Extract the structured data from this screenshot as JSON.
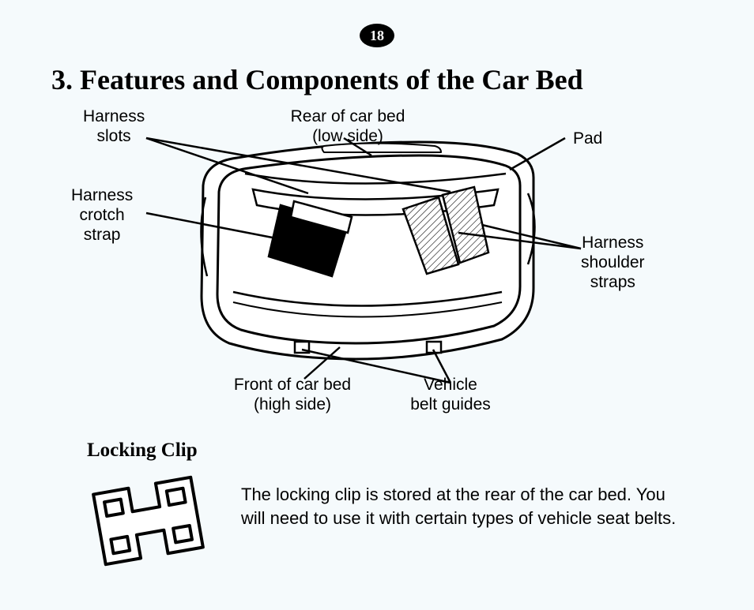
{
  "page_number": "18",
  "title": "3.  Features and Components of the Car Bed",
  "labels": {
    "harness_slots": "Harness\nslots",
    "rear_of_bed": "Rear of car bed\n(low side)",
    "pad": "Pad",
    "harness_crotch_strap": "Harness\ncrotch\nstrap",
    "harness_shoulder_straps": "Harness\nshoulder\nstraps",
    "front_of_bed": "Front of car bed\n(high side)",
    "vehicle_belt_guides": "Vehicle\nbelt guides"
  },
  "locking_clip": {
    "heading": "Locking Clip",
    "text": "The locking clip is stored at the rear of the car bed. You will need to use it with certain types of vehicle seat belts."
  },
  "style": {
    "background": "#f5fafc",
    "text_color": "#000000",
    "badge_bg": "#000000",
    "badge_fg": "#ffffff",
    "stroke": "#000000",
    "stroke_width_main": 3,
    "stroke_width_leader": 2.5,
    "hatch_fill": "#888888",
    "title_fontsize": 36,
    "label_fontsize": 21,
    "body_fontsize": 22,
    "locking_title_fontsize": 25,
    "font_family_serif": "Times New Roman",
    "font_family_sans": "Lucida Sans"
  }
}
